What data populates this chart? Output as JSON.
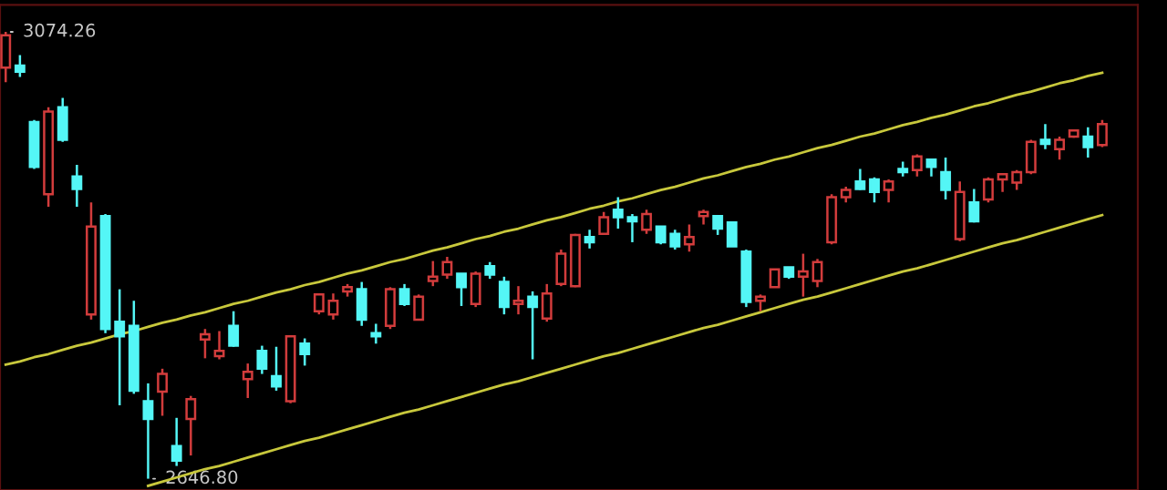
{
  "chart_data": {
    "type": "candlestick",
    "categories": [
      null,
      null,
      null,
      null,
      null,
      null,
      null,
      null,
      null,
      null,
      null,
      null,
      null,
      null,
      null,
      null,
      null,
      null,
      null,
      null,
      null,
      null,
      null,
      null,
      null,
      null,
      null,
      null,
      null,
      null,
      null,
      null,
      null,
      null,
      null,
      null,
      null,
      null,
      null,
      null,
      null,
      null,
      null,
      null,
      null,
      null,
      null,
      null,
      null,
      null,
      null,
      null,
      null,
      null,
      null,
      null,
      null,
      null,
      null,
      null,
      null,
      null,
      null,
      null,
      null,
      null,
      null,
      null,
      null,
      null,
      null,
      null,
      null,
      null,
      null,
      null,
      null,
      null
    ],
    "ohlc": [
      [
        3040,
        3074.26,
        3026,
        3071
      ],
      [
        3042,
        3052,
        3031,
        3036
      ],
      [
        2988,
        2990,
        2943,
        2945
      ],
      [
        2919,
        3002,
        2907,
        2998
      ],
      [
        3002,
        3011,
        2969,
        2971
      ],
      [
        2936,
        2947,
        2907,
        2924
      ],
      [
        2804,
        2911,
        2799,
        2888
      ],
      [
        2898,
        2900,
        2786,
        2790
      ],
      [
        2797,
        2828,
        2717,
        2783
      ],
      [
        2793,
        2817,
        2728,
        2731
      ],
      [
        2721,
        2738,
        2646.8,
        2704
      ],
      [
        2730,
        2752,
        2707,
        2747
      ],
      [
        2678,
        2705,
        2659,
        2664
      ],
      [
        2704,
        2726,
        2669,
        2723
      ],
      [
        2780,
        2790,
        2762,
        2785
      ],
      [
        2764,
        2788,
        2761,
        2769
      ],
      [
        2793,
        2807,
        2773,
        2774
      ],
      [
        2742,
        2757,
        2724,
        2749
      ],
      [
        2769,
        2774,
        2747,
        2752
      ],
      [
        2745,
        2773,
        2731,
        2735
      ],
      [
        2721,
        2783,
        2719,
        2783
      ],
      [
        2776,
        2781,
        2755,
        2766
      ],
      [
        2807,
        2824,
        2804,
        2823
      ],
      [
        2804,
        2824,
        2799,
        2817
      ],
      [
        2826,
        2833,
        2821,
        2830
      ],
      [
        2828,
        2835,
        2793,
        2799
      ],
      [
        2786,
        2795,
        2776,
        2783
      ],
      [
        2793,
        2830,
        2790,
        2828
      ],
      [
        2828,
        2833,
        2812,
        2814
      ],
      [
        2799,
        2823,
        2799,
        2821
      ],
      [
        2836,
        2855,
        2831,
        2840
      ],
      [
        2842,
        2859,
        2838,
        2854
      ],
      [
        2843,
        2843,
        2812,
        2830
      ],
      [
        2814,
        2845,
        2811,
        2843
      ],
      [
        2850,
        2854,
        2838,
        2842
      ],
      [
        2835,
        2840,
        2804,
        2811
      ],
      [
        2814,
        2831,
        2804,
        2817
      ],
      [
        2821,
        2826,
        2761,
        2811
      ],
      [
        2800,
        2833,
        2797,
        2824
      ],
      [
        2833,
        2866,
        2831,
        2862
      ],
      [
        2831,
        2881,
        2830,
        2880
      ],
      [
        2878,
        2885,
        2867,
        2873
      ],
      [
        2881,
        2902,
        2880,
        2897
      ],
      [
        2904,
        2916,
        2886,
        2897
      ],
      [
        2897,
        2900,
        2873,
        2893
      ],
      [
        2885,
        2904,
        2881,
        2900
      ],
      [
        2888,
        2888,
        2871,
        2873
      ],
      [
        2881,
        2885,
        2866,
        2869
      ],
      [
        2871,
        2890,
        2864,
        2878
      ],
      [
        2898,
        2904,
        2890,
        2902
      ],
      [
        2898,
        2898,
        2880,
        2886
      ],
      [
        2892,
        2893,
        2869,
        2869
      ],
      [
        2864,
        2866,
        2811,
        2816
      ],
      [
        2817,
        2823,
        2807,
        2821
      ],
      [
        2830,
        2847,
        2830,
        2847
      ],
      [
        2849,
        2849,
        2838,
        2840
      ],
      [
        2840,
        2862,
        2821,
        2845
      ],
      [
        2836,
        2857,
        2830,
        2854
      ],
      [
        2873,
        2919,
        2871,
        2916
      ],
      [
        2916,
        2926,
        2911,
        2923
      ],
      [
        2931,
        2943,
        2923,
        2924
      ],
      [
        2933,
        2935,
        2911,
        2921
      ],
      [
        2923,
        2933,
        2911,
        2931
      ],
      [
        2943,
        2950,
        2936,
        2940
      ],
      [
        2942,
        2957,
        2936,
        2955
      ],
      [
        2952,
        2952,
        2936,
        2945
      ],
      [
        2940,
        2954,
        2914,
        2923
      ],
      [
        2876,
        2931,
        2874,
        2921
      ],
      [
        2911,
        2924,
        2892,
        2893
      ],
      [
        2914,
        2935,
        2911,
        2933
      ],
      [
        2933,
        2938,
        2921,
        2938
      ],
      [
        2930,
        2942,
        2923,
        2940
      ],
      [
        2940,
        2971,
        2938,
        2969
      ],
      [
        2971,
        2986,
        2962,
        2967
      ],
      [
        2962,
        2974,
        2952,
        2971
      ],
      [
        2974,
        2981,
        2973,
        2980
      ],
      [
        2974,
        2983,
        2954,
        2964
      ],
      [
        2966,
        2990,
        2964,
        2986
      ]
    ],
    "colors": [
      "#d23c3c",
      "#54f6f6",
      "#54f6f6",
      "#d23c3c",
      "#54f6f6",
      "#54f6f6",
      "#d23c3c",
      "#54f6f6",
      "#54f6f6",
      "#54f6f6",
      "#54f6f6",
      "#d23c3c",
      "#54f6f6",
      "#d23c3c",
      "#d23c3c",
      "#d23c3c",
      "#54f6f6",
      "#d23c3c",
      "#54f6f6",
      "#54f6f6",
      "#d23c3c",
      "#54f6f6",
      "#d23c3c",
      "#d23c3c",
      "#d23c3c",
      "#54f6f6",
      "#54f6f6",
      "#d23c3c",
      "#54f6f6",
      "#d23c3c",
      "#d23c3c",
      "#d23c3c",
      "#54f6f6",
      "#d23c3c",
      "#54f6f6",
      "#54f6f6",
      "#d23c3c",
      "#54f6f6",
      "#d23c3c",
      "#d23c3c",
      "#d23c3c",
      "#54f6f6",
      "#d23c3c",
      "#54f6f6",
      "#54f6f6",
      "#d23c3c",
      "#54f6f6",
      "#54f6f6",
      "#d23c3c",
      "#d23c3c",
      "#54f6f6",
      "#54f6f6",
      "#54f6f6",
      "#d23c3c",
      "#d23c3c",
      "#54f6f6",
      "#d23c3c",
      "#d23c3c",
      "#d23c3c",
      "#d23c3c",
      "#54f6f6",
      "#54f6f6",
      "#d23c3c",
      "#54f6f6",
      "#d23c3c",
      "#54f6f6",
      "#54f6f6",
      "#d23c3c",
      "#54f6f6",
      "#d23c3c",
      "#d23c3c",
      "#d23c3c",
      "#d23c3c",
      "#54f6f6",
      "#d23c3c",
      "#d23c3c",
      "#54f6f6",
      "#d23c3c"
    ],
    "series": [
      {
        "type": "line",
        "color": "#c8c83c",
        "values": [
          2756,
          2759,
          2763,
          2766,
          2770,
          2774,
          2777,
          2781,
          2785,
          2788,
          2792,
          2796,
          2799,
          2803,
          2806,
          2810,
          2814,
          2817,
          2821,
          2825,
          2828,
          2832,
          2835,
          2839,
          2843,
          2846,
          2850,
          2854,
          2857,
          2861,
          2865,
          2868,
          2872,
          2876,
          2879,
          2883,
          2886,
          2890,
          2894,
          2897,
          2901,
          2905,
          2908,
          2912,
          2915,
          2919,
          2923,
          2926,
          2930,
          2934,
          2937,
          2941,
          2945,
          2948,
          2952,
          2955,
          2959,
          2963,
          2966,
          2970,
          2974,
          2977,
          2981,
          2985,
          2988,
          2992,
          2995,
          2999,
          3003,
          3006,
          3010,
          3014,
          3017,
          3021,
          3025,
          3028,
          3032,
          3035
        ]
      },
      {
        "type": "line",
        "color": "#c8c83c",
        "values": [
          null,
          null,
          null,
          null,
          null,
          null,
          null,
          null,
          null,
          null,
          2640,
          2644,
          2648,
          2652,
          2656,
          2659,
          2663,
          2667,
          2671,
          2675,
          2679,
          2683,
          2686,
          2690,
          2694,
          2698,
          2702,
          2706,
          2710,
          2713,
          2717,
          2721,
          2725,
          2729,
          2733,
          2737,
          2740,
          2744,
          2748,
          2752,
          2756,
          2760,
          2764,
          2767,
          2771,
          2775,
          2779,
          2783,
          2787,
          2791,
          2794,
          2798,
          2802,
          2806,
          2810,
          2814,
          2818,
          2821,
          2825,
          2829,
          2833,
          2837,
          2841,
          2845,
          2848,
          2852,
          2856,
          2860,
          2864,
          2868,
          2872,
          2875,
          2879,
          2883,
          2887,
          2891,
          2895,
          2899
        ]
      }
    ],
    "ylim": [
      2636,
      3100
    ],
    "annotations": [
      "3074.26",
      "2646.80"
    ]
  }
}
